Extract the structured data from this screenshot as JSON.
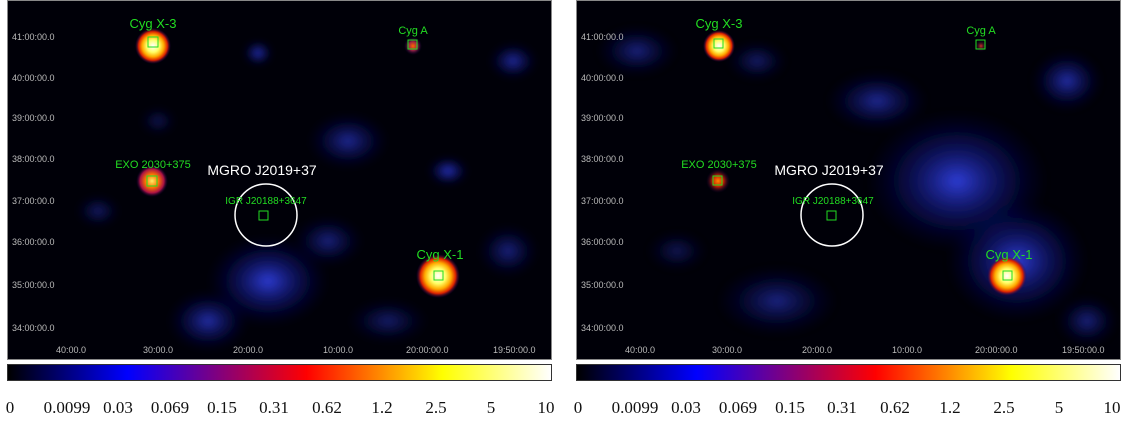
{
  "panels": [
    {
      "id": "left",
      "sources": {
        "cyg_x3": {
          "label": "Cyg X-3"
        },
        "cyg_a": {
          "label": "Cyg A"
        },
        "exo": {
          "label": "EXO 2030+375"
        },
        "igr": {
          "label": "IGR J20188+3647"
        },
        "cyg_x1": {
          "label": "Cyg X-1"
        }
      },
      "region": {
        "label": "MGRO J2019+37"
      },
      "yticks": [
        "41:00:00.0",
        "40:00:00.0",
        "39:00:00.0",
        "38:00:00.0",
        "37:00:00.0",
        "36:00:00.0",
        "35:00:00.0",
        "34:00:00.0"
      ],
      "xticks": [
        "40:00.0",
        "30:00.0",
        "20:00.0",
        "10:00.0",
        "20:00:00.0",
        "19:50:00.0"
      ]
    },
    {
      "id": "right",
      "sources": {
        "cyg_x3": {
          "label": "Cyg X-3"
        },
        "cyg_a": {
          "label": "Cyg A"
        },
        "exo": {
          "label": "EXO 2030+375"
        },
        "igr": {
          "label": "IGR J20188+3647"
        },
        "cyg_x1": {
          "label": "Cyg X-1"
        }
      },
      "region": {
        "label": "MGRO J2019+37"
      },
      "yticks": [
        "41:00:00.0",
        "40:00:00.0",
        "39:00:00.0",
        "38:00:00.0",
        "37:00:00.0",
        "36:00:00.0",
        "35:00:00.0",
        "34:00:00.0"
      ],
      "xticks": [
        "40:00.0",
        "30:00.0",
        "20:00.0",
        "10:00.0",
        "20:00:00.0",
        "19:50:00.0"
      ]
    }
  ],
  "colorbar": {
    "stops": [
      "#000000",
      "#0000ff",
      "#ff0000",
      "#ffff00",
      "#ffffff"
    ],
    "labels": [
      "0",
      "0.0099",
      "0.03",
      "0.069",
      "0.15",
      "0.31",
      "0.62",
      "1.2",
      "2.5",
      "5",
      "10"
    ]
  },
  "colors": {
    "source_label": "#22dd22",
    "region": "#ffffff"
  }
}
